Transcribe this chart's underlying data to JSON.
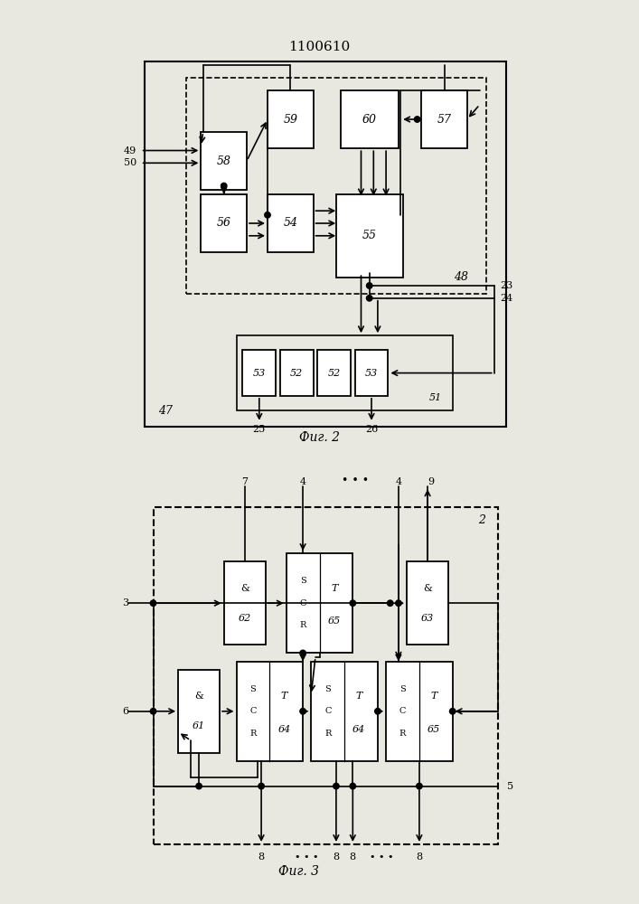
{
  "title": "1100610",
  "fig1_caption": "Фиг. 2",
  "fig2_caption": "Фиг. 3",
  "bg_color": "#e8e8e0",
  "box_color": "#ffffff",
  "line_color": "#000000",
  "text_color": "#000000"
}
